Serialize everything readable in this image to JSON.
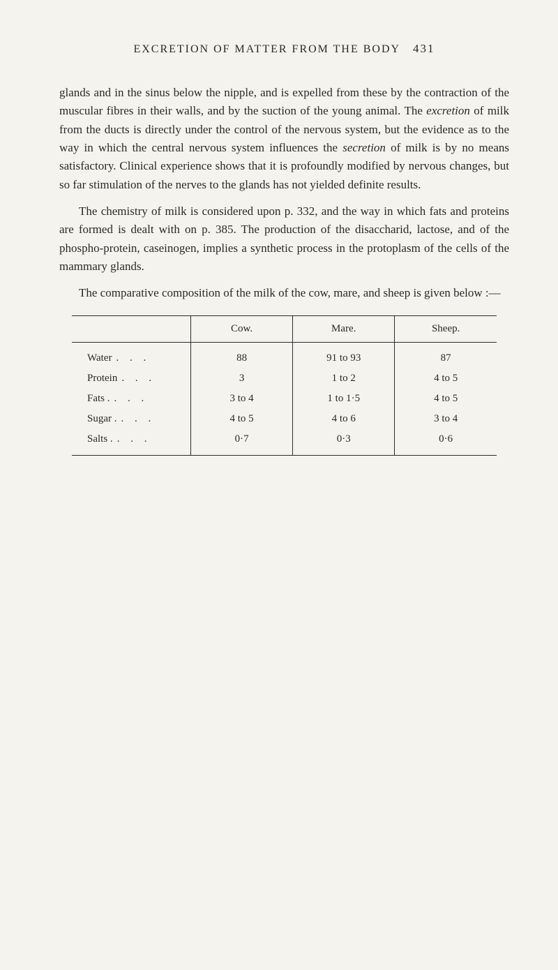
{
  "header": {
    "title": "EXCRETION OF MATTER FROM THE BODY",
    "page_number": "431"
  },
  "paragraphs": {
    "p1_a": "glands and in the sinus below the nipple, and is expelled from these by the contraction of the muscular fibres in their walls, and by the suction of the young animal. The ",
    "p1_i1": "excretion",
    "p1_b": " of milk from the ducts is directly under the control of the nervous system, but the evidence as to the way in which the central nervous system influences the ",
    "p1_i2": "secretion",
    "p1_c": " of milk is by no means satisfactory. Clinical experience shows that it is profoundly modified by nervous changes, but so far stimulation of the nerves to the glands has not yielded definite results.",
    "p2": "The chemistry of milk is considered upon p. 332, and the way in which fats and proteins are formed is dealt with on p. 385. The production of the disaccharid, lactose, and of the phospho-protein, caseinogen, implies a synthetic process in the protoplasm of the cells of the mammary glands.",
    "p3": "The comparative composition of the milk of the cow, mare, and sheep is given below :—"
  },
  "table": {
    "type": "table",
    "columns": [
      "",
      "Cow.",
      "Mare.",
      "Sheep."
    ],
    "rows": [
      {
        "label": "Water",
        "dots": ". . .",
        "cow": "88",
        "mare": "91 to 93",
        "sheep": "87"
      },
      {
        "label": "Protein",
        "dots": ". . .",
        "cow": "3",
        "mare": "1 to 2",
        "sheep": "4 to 5"
      },
      {
        "label": "Fats .",
        "dots": ". . .",
        "cow": "3 to 4",
        "mare": "1 to 1·5",
        "sheep": "4 to 5"
      },
      {
        "label": "Sugar .",
        "dots": ". . .",
        "cow": "4 to 5",
        "mare": "4 to 6",
        "sheep": "3 to 4"
      },
      {
        "label": "Salts .",
        "dots": ". . .",
        "cow": "0·7",
        "mare": "0·3",
        "sheep": "0·6"
      }
    ],
    "border_color": "#2a2a2a",
    "background_color": "#f5f3ed",
    "header_fontsize": 15,
    "cell_fontsize": 15
  },
  "page_style": {
    "background_color": "#f5f3ed",
    "text_color": "#2a2a2a",
    "body_fontsize": 17,
    "header_fontsize": 16,
    "line_height": 1.55
  }
}
